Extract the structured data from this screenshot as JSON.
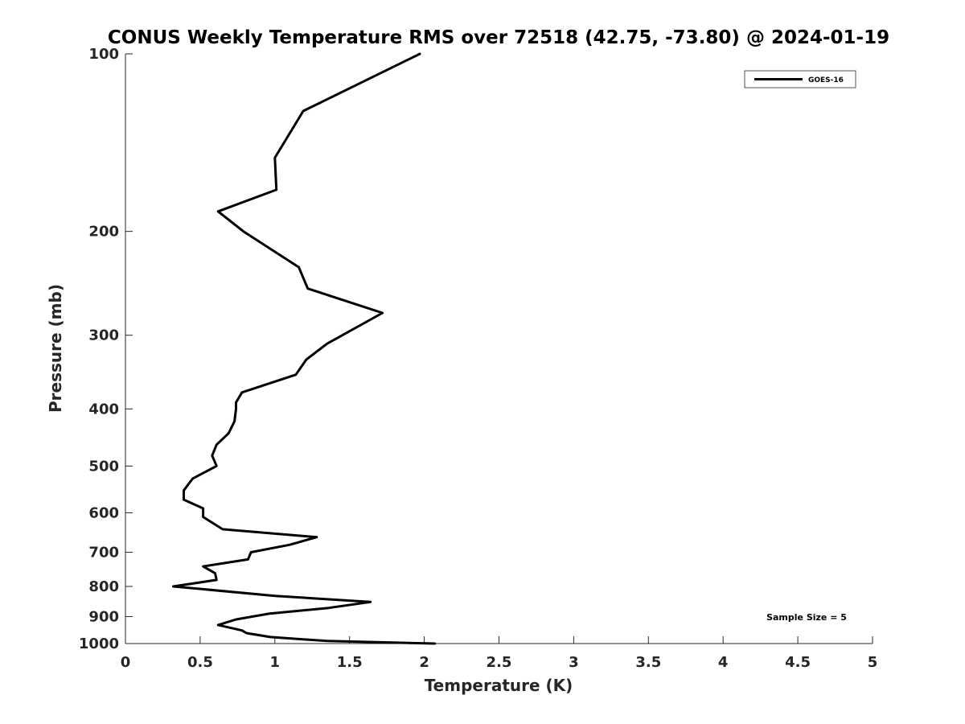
{
  "chart_data": {
    "type": "line",
    "title": "CONUS Weekly Temperature RMS over 72518 (42.75, -73.80) @ 2024-01-19",
    "xlabel": "Temperature (K)",
    "ylabel": "Pressure (mb)",
    "xlim": [
      0,
      5
    ],
    "ylim": [
      100,
      1000
    ],
    "y_scale": "log",
    "y_reversed": true,
    "x_ticks": [
      "0",
      "0.5",
      "1",
      "1.5",
      "2",
      "2.5",
      "3",
      "3.5",
      "4",
      "4.5",
      "5"
    ],
    "y_ticks": [
      "100",
      "200",
      "300",
      "400",
      "500",
      "600",
      "700",
      "800",
      "900",
      "1000"
    ],
    "grid": false,
    "legend_position": "top-right",
    "annotation": "Sample Size = 5",
    "series": [
      {
        "name": "GOES-16",
        "color": "#000000",
        "x": [
          1.97,
          1.19,
          1.0,
          1.01,
          0.62,
          0.79,
          1.16,
          1.22,
          1.72,
          1.35,
          1.21,
          1.14,
          0.78,
          0.74,
          0.74,
          0.73,
          0.69,
          0.61,
          0.58,
          0.61,
          0.45,
          0.39,
          0.39,
          0.52,
          0.52,
          0.65,
          1.28,
          1.1,
          0.84,
          0.82,
          0.52,
          0.6,
          0.61,
          0.32,
          1.0,
          1.64,
          1.36,
          0.96,
          0.74,
          0.62,
          0.78,
          0.81,
          0.97,
          1.35,
          2.07
        ],
        "y": [
          100,
          125,
          150,
          170,
          185,
          200,
          230,
          250,
          275,
          310,
          330,
          350,
          375,
          390,
          400,
          420,
          440,
          460,
          480,
          500,
          525,
          550,
          570,
          590,
          610,
          640,
          660,
          680,
          700,
          720,
          740,
          760,
          780,
          800,
          830,
          850,
          870,
          890,
          910,
          930,
          950,
          960,
          975,
          990,
          1000
        ]
      }
    ]
  }
}
